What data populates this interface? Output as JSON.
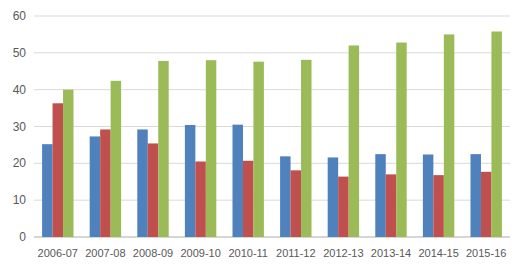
{
  "chart_data": {
    "type": "bar",
    "categories": [
      "2006-07",
      "2007-08",
      "2008-09",
      "2009-10",
      "2010-11",
      "2011-12",
      "2012-13",
      "2013-14",
      "2014-15",
      "2015-16"
    ],
    "series": [
      {
        "color": "#4f81bd",
        "values": [
          25.2,
          27.3,
          29.2,
          30.4,
          30.5,
          21.9,
          21.6,
          22.5,
          22.4,
          22.5
        ]
      },
      {
        "color": "#c0504d",
        "values": [
          36.3,
          29.2,
          25.4,
          20.5,
          20.7,
          18.1,
          16.4,
          17.0,
          16.8,
          17.7
        ]
      },
      {
        "color": "#9bbb59",
        "values": [
          40.0,
          42.4,
          47.8,
          48.0,
          47.6,
          48.1,
          52.0,
          52.8,
          55.0,
          55.8
        ]
      }
    ],
    "ylim": [
      0,
      60
    ],
    "yticks": [
      0,
      10,
      20,
      30,
      40,
      50,
      60
    ],
    "grid": true
  }
}
